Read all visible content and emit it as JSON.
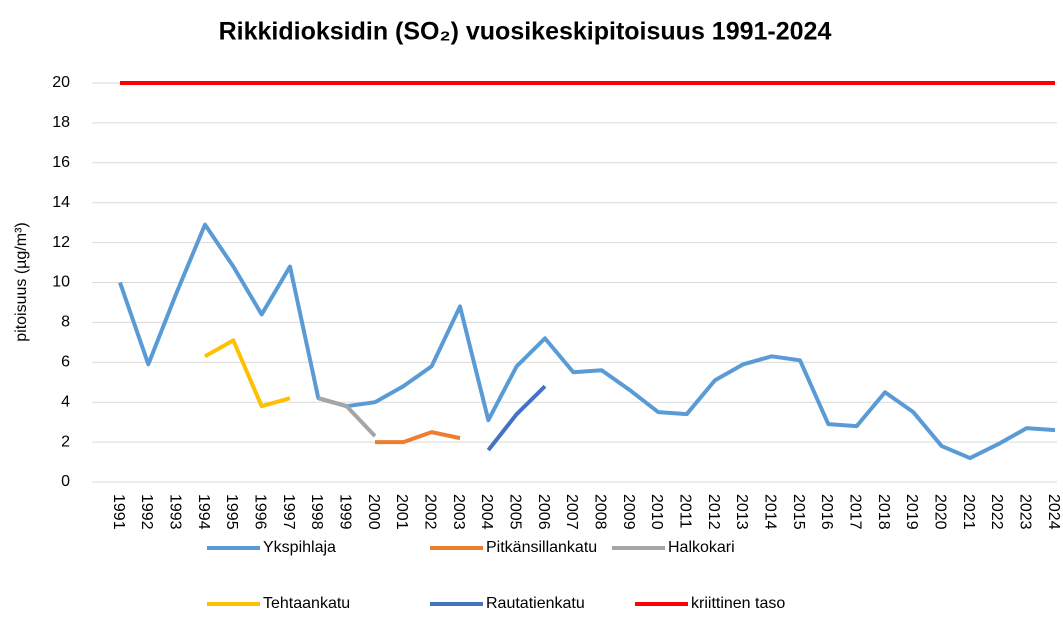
{
  "chart_data": {
    "type": "line",
    "title": "Rikkidioksidin (SO₂) vuosikeskipitoisuus 1991-2024",
    "y_label": "pitoisuus (µg/m³)",
    "categories": [
      "1991",
      "1992",
      "1993",
      "1994",
      "1995",
      "1996",
      "1997",
      "1998",
      "1999",
      "2000",
      "2001",
      "2002",
      "2003",
      "2004",
      "2005",
      "2006",
      "2007",
      "2008",
      "2009",
      "2010",
      "2011",
      "2012",
      "2013",
      "2014",
      "2015",
      "2016",
      "2017",
      "2018",
      "2019",
      "2020",
      "2021",
      "2022",
      "2023",
      "2024"
    ],
    "series": [
      {
        "name": "Ykspihlaja",
        "color": "#5b9bd5",
        "values": [
          10.0,
          5.9,
          9.5,
          12.9,
          10.8,
          8.4,
          10.8,
          4.2,
          3.8,
          4.0,
          4.8,
          5.8,
          8.8,
          3.1,
          5.8,
          7.2,
          5.5,
          5.6,
          4.6,
          3.5,
          3.4,
          5.1,
          5.9,
          6.3,
          6.1,
          2.9,
          2.8,
          4.5,
          3.5,
          1.8,
          1.2,
          1.9,
          2.7,
          2.6
        ]
      },
      {
        "name": "Pitkänsillankatu",
        "color": "#ed7d31",
        "values": [
          null,
          null,
          null,
          null,
          null,
          null,
          null,
          null,
          null,
          2.0,
          2.0,
          2.5,
          2.2,
          null,
          null,
          null,
          null,
          null,
          null,
          null,
          null,
          null,
          null,
          null,
          null,
          null,
          null,
          null,
          null,
          null,
          null,
          null,
          null,
          null
        ]
      },
      {
        "name": "Halkokari",
        "color": "#a5a5a5",
        "values": [
          null,
          null,
          null,
          null,
          null,
          null,
          null,
          4.2,
          3.8,
          2.3,
          null,
          null,
          null,
          null,
          null,
          null,
          null,
          null,
          null,
          null,
          null,
          null,
          null,
          null,
          null,
          null,
          null,
          null,
          null,
          null,
          null,
          null,
          null,
          null
        ]
      },
      {
        "name": "Tehtaankatu",
        "color": "#ffc000",
        "values": [
          null,
          null,
          null,
          6.3,
          7.1,
          3.8,
          4.2,
          null,
          null,
          null,
          null,
          null,
          null,
          null,
          null,
          null,
          null,
          null,
          null,
          null,
          null,
          null,
          null,
          null,
          null,
          null,
          null,
          null,
          null,
          null,
          null,
          null,
          null,
          null
        ]
      },
      {
        "name": "Rautatienkatu",
        "color": "#4472c4",
        "values": [
          null,
          null,
          null,
          null,
          null,
          null,
          null,
          null,
          null,
          null,
          null,
          null,
          null,
          1.6,
          3.4,
          4.8,
          null,
          null,
          null,
          null,
          null,
          null,
          null,
          null,
          null,
          null,
          null,
          null,
          null,
          null,
          null,
          null,
          null,
          null
        ]
      },
      {
        "name": "kriittinen taso",
        "color": "#ff0000",
        "values": [
          20,
          20,
          20,
          20,
          20,
          20,
          20,
          20,
          20,
          20,
          20,
          20,
          20,
          20,
          20,
          20,
          20,
          20,
          20,
          20,
          20,
          20,
          20,
          20,
          20,
          20,
          20,
          20,
          20,
          20,
          20,
          20,
          20,
          20
        ]
      }
    ],
    "ylim": [
      0,
      20
    ],
    "yticks": [
      0,
      2,
      4,
      6,
      8,
      10,
      12,
      14,
      16,
      18,
      20
    ],
    "grid": true,
    "legend": "bottom"
  }
}
